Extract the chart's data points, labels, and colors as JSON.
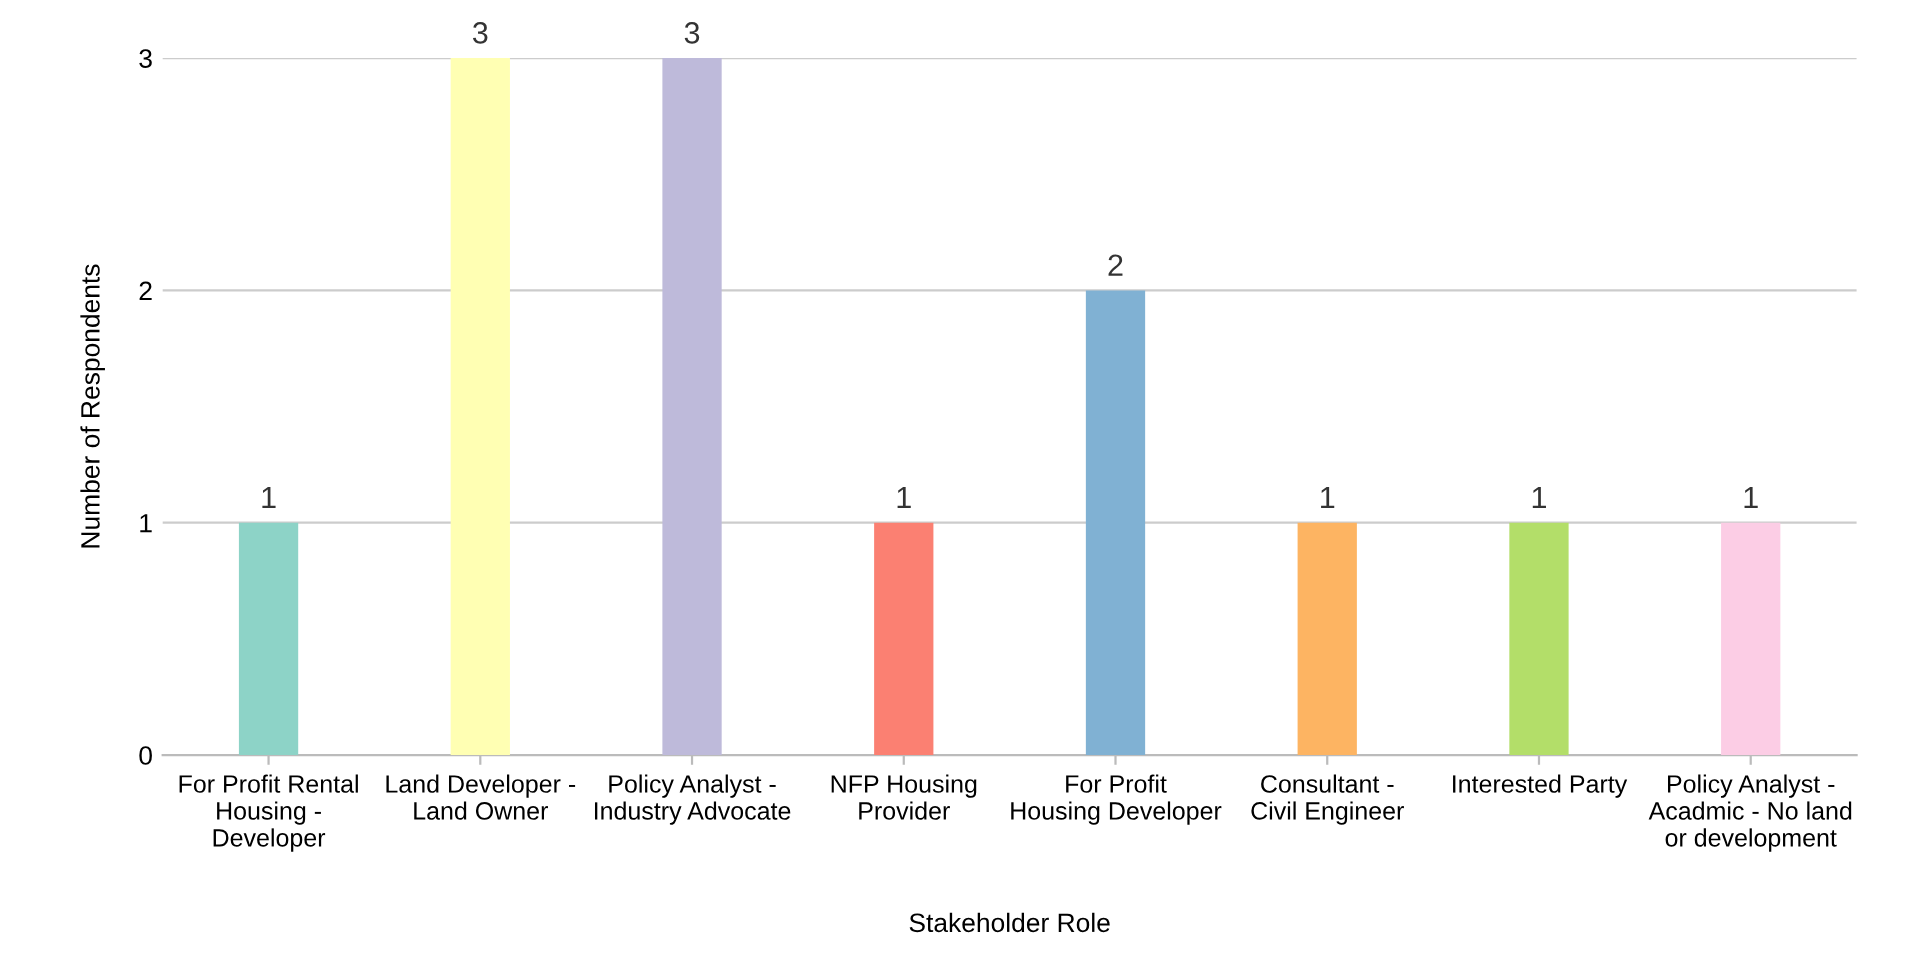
{
  "chart_data": {
    "type": "bar",
    "xlabel": "Stakeholder Role",
    "ylabel": "Number of Respondents",
    "categories": [
      "For Profit Rental Housing - Developer",
      "Land Developer - Land Owner",
      "Policy Analyst - Industry Advocate",
      "NFP Housing Provider",
      "For Profit Housing Developer",
      "Consultant - Civil Engineer",
      "Interested Party",
      "Policy Analyst - Acadmic - No land or development"
    ],
    "values": [
      1,
      3,
      3,
      1,
      2,
      1,
      1,
      1
    ],
    "colors": [
      "#8dd3c7",
      "#ffffb3",
      "#bebada",
      "#fb8072",
      "#80b1d3",
      "#fdb462",
      "#b3de69",
      "#fccde5"
    ],
    "ylim": [
      0,
      3
    ],
    "yticks": [
      0,
      1,
      2,
      3
    ],
    "grid": "y",
    "data_labels": true,
    "legend": false
  }
}
